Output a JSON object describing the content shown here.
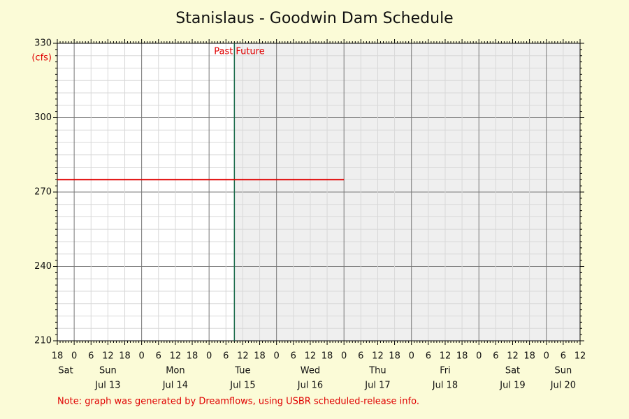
{
  "chart_data": {
    "type": "line",
    "title": "Stanislaus - Goodwin Dam Schedule",
    "y_unit": "(cfs)",
    "note": "Note: graph was generated by Dreamflows, using USBR scheduled-release info.",
    "now": {
      "x": 63,
      "past_label": "Past",
      "future_label": "Future"
    },
    "series": [
      {
        "color": "#e00000",
        "x": [
          0,
          102
        ],
        "values": [
          275,
          275
        ]
      }
    ],
    "xlim": [
      0,
      186
    ],
    "xticks": [
      {
        "value": 0,
        "label": "18"
      },
      {
        "value": 6,
        "label": "0"
      },
      {
        "value": 12,
        "label": "6"
      },
      {
        "value": 18,
        "label": "12"
      },
      {
        "value": 24,
        "label": "18"
      },
      {
        "value": 30,
        "label": "0"
      },
      {
        "value": 36,
        "label": "6"
      },
      {
        "value": 42,
        "label": "12"
      },
      {
        "value": 48,
        "label": "18"
      },
      {
        "value": 54,
        "label": "0"
      },
      {
        "value": 60,
        "label": "6"
      },
      {
        "value": 66,
        "label": "12"
      },
      {
        "value": 72,
        "label": "18"
      },
      {
        "value": 78,
        "label": "0"
      },
      {
        "value": 84,
        "label": "6"
      },
      {
        "value": 90,
        "label": "12"
      },
      {
        "value": 96,
        "label": "18"
      },
      {
        "value": 102,
        "label": "0"
      },
      {
        "value": 108,
        "label": "6"
      },
      {
        "value": 114,
        "label": "12"
      },
      {
        "value": 120,
        "label": "18"
      },
      {
        "value": 126,
        "label": "0"
      },
      {
        "value": 132,
        "label": "6"
      },
      {
        "value": 138,
        "label": "12"
      },
      {
        "value": 144,
        "label": "18"
      },
      {
        "value": 150,
        "label": "0"
      },
      {
        "value": 156,
        "label": "6"
      },
      {
        "value": 162,
        "label": "12"
      },
      {
        "value": 168,
        "label": "18"
      },
      {
        "value": 174,
        "label": "0"
      },
      {
        "value": 180,
        "label": "6"
      },
      {
        "value": 186,
        "label": "12"
      }
    ],
    "days": [
      {
        "start": -18,
        "weekday": "Sat"
      },
      {
        "start": 6,
        "weekday": "Sun",
        "date": "Jul 13"
      },
      {
        "start": 30,
        "weekday": "Mon",
        "date": "Jul 14"
      },
      {
        "start": 54,
        "weekday": "Tue",
        "date": "Jul 15"
      },
      {
        "start": 78,
        "weekday": "Wed",
        "date": "Jul 16"
      },
      {
        "start": 102,
        "weekday": "Thu",
        "date": "Jul 17"
      },
      {
        "start": 126,
        "weekday": "Fri",
        "date": "Jul 18"
      },
      {
        "start": 150,
        "weekday": "Sat",
        "date": "Jul 19"
      },
      {
        "start": 174,
        "weekday": "Sun",
        "date": "Jul 20"
      }
    ],
    "ylim": [
      210,
      330
    ],
    "yticks": [
      210,
      240,
      270,
      300,
      330
    ],
    "grid": true
  }
}
